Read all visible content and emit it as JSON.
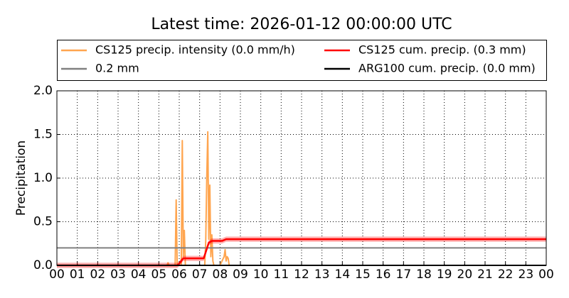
{
  "chart_data": {
    "type": "line",
    "title": "Latest time: 2026-01-12 00:00:00 UTC",
    "y_label": "Precipitation",
    "xlim": [
      0,
      24
    ],
    "ylim": [
      0,
      2
    ],
    "xticks": [
      {
        "value": 0,
        "label": "00"
      },
      {
        "value": 1,
        "label": "01"
      },
      {
        "value": 2,
        "label": "02"
      },
      {
        "value": 3,
        "label": "03"
      },
      {
        "value": 4,
        "label": "04"
      },
      {
        "value": 5,
        "label": "05"
      },
      {
        "value": 6,
        "label": "06"
      },
      {
        "value": 7,
        "label": "07"
      },
      {
        "value": 8,
        "label": "08"
      },
      {
        "value": 9,
        "label": "09"
      },
      {
        "value": 10,
        "label": "10"
      },
      {
        "value": 11,
        "label": "11"
      },
      {
        "value": 12,
        "label": "12"
      },
      {
        "value": 13,
        "label": "13"
      },
      {
        "value": 14,
        "label": "14"
      },
      {
        "value": 15,
        "label": "15"
      },
      {
        "value": 16,
        "label": "16"
      },
      {
        "value": 17,
        "label": "17"
      },
      {
        "value": 18,
        "label": "18"
      },
      {
        "value": 19,
        "label": "19"
      },
      {
        "value": 20,
        "label": "20"
      },
      {
        "value": 21,
        "label": "21"
      },
      {
        "value": 22,
        "label": "22"
      },
      {
        "value": 23,
        "label": "23"
      },
      {
        "value": 24,
        "label": "00"
      }
    ],
    "yticks": [
      {
        "value": 0,
        "label": "0.0"
      },
      {
        "value": 0.5,
        "label": "0.5"
      },
      {
        "value": 1,
        "label": "1.0"
      },
      {
        "value": 1.5,
        "label": "1.5"
      },
      {
        "value": 2,
        "label": "2.0"
      }
    ],
    "grid": true,
    "series": [
      {
        "name": "CS125 precip. intensity (0.0 mm/h)",
        "color": "#ffa54f",
        "x": [
          0,
          5.4,
          5.45,
          5.5,
          5.8,
          5.85,
          5.9,
          6.1,
          6.15,
          6.2,
          6.25,
          6.3,
          6.35,
          7.25,
          7.3,
          7.35,
          7.4,
          7.45,
          7.5,
          7.55,
          7.6,
          7.65,
          7.7,
          8.0,
          8.1,
          8.2,
          8.25,
          8.3,
          8.35,
          8.4,
          8.45
        ],
        "values": [
          0,
          0,
          0.03,
          0,
          0,
          0.75,
          0,
          0,
          1.43,
          0.1,
          0.4,
          0,
          0,
          0,
          0.28,
          1.0,
          1.53,
          0.3,
          0.92,
          0.1,
          0.35,
          0.05,
          0,
          0,
          0.05,
          0.1,
          0.18,
          0.05,
          0.1,
          0.08,
          0
        ]
      },
      {
        "name": "0.2 mm",
        "color": "#808080",
        "x": [
          0,
          24
        ],
        "values": [
          0.2,
          0.2
        ]
      },
      {
        "name": "CS125 cum. precip. (0.3 mm)",
        "color": "#ff0000",
        "band": 0.03,
        "x": [
          0,
          5.9,
          6.0,
          6.2,
          7.2,
          7.45,
          7.6,
          8.1,
          8.3,
          24
        ],
        "values": [
          0,
          0,
          0.02,
          0.08,
          0.08,
          0.26,
          0.28,
          0.28,
          0.3,
          0.3
        ]
      },
      {
        "name": "ARG100 cum. precip. (0.0 mm)",
        "color": "#000000",
        "x": [
          0,
          24
        ],
        "values": [
          0,
          0
        ]
      }
    ]
  }
}
